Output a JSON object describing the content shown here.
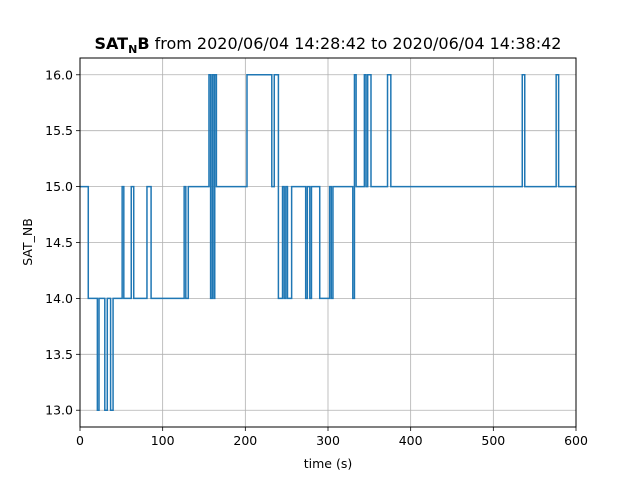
{
  "chart_data": {
    "type": "line",
    "title_bold": "SAT",
    "title_subscript": "N",
    "title_bold_tail": "B",
    "title_rest": " from 2020/06/04 14:28:42 to 2020/06/04 14:38:42",
    "xlabel": "time (s)",
    "ylabel": "SAT_NB",
    "xlim": [
      0,
      600
    ],
    "ylim": [
      12.85,
      16.15
    ],
    "xticks": [
      0,
      100,
      200,
      300,
      400,
      500,
      600
    ],
    "xtick_labels": [
      "0",
      "100",
      "200",
      "300",
      "400",
      "500",
      "600"
    ],
    "yticks": [
      13.0,
      13.5,
      14.0,
      14.5,
      15.0,
      15.5,
      16.0
    ],
    "ytick_labels": [
      "13.0",
      "13.5",
      "14.0",
      "14.5",
      "15.0",
      "15.5",
      "16.0"
    ],
    "grid": true,
    "line_color": "#1f77b4",
    "step": true,
    "series": [
      {
        "x": [
          0,
          10,
          21,
          23,
          30,
          33,
          37,
          40,
          51,
          53,
          62,
          65,
          81,
          86,
          126,
          128,
          131,
          156,
          158,
          160,
          162,
          163,
          165,
          202,
          232,
          235,
          240,
          245,
          247,
          249,
          251,
          256,
          273,
          275,
          278,
          280,
          283,
          290,
          302,
          304,
          306,
          308,
          330,
          332,
          334,
          344,
          346,
          348,
          352,
          372,
          376,
          535,
          538,
          576,
          579
        ],
        "y": [
          15,
          14,
          13,
          14,
          13,
          14,
          13,
          14,
          15,
          14,
          15,
          14,
          15,
          14,
          15,
          14,
          15,
          16,
          14,
          16,
          14,
          16,
          15,
          16,
          15,
          16,
          14,
          15,
          14,
          15,
          14,
          15,
          14,
          15,
          14,
          15,
          15,
          14,
          15,
          14,
          15,
          15,
          14,
          16,
          15,
          16,
          15,
          16,
          15,
          16,
          15,
          16,
          15,
          16,
          15
        ]
      }
    ]
  }
}
